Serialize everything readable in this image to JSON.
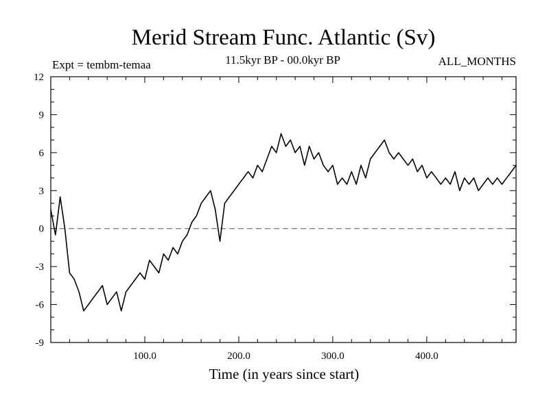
{
  "chart_data": {
    "type": "line",
    "title": "Merid Stream Func. Atlantic (Sv)",
    "subtitle_left": "Expt = tembm-temaa",
    "subtitle_center": "11.5kyr BP - 00.0kyr BP",
    "subtitle_right": "ALL_MONTHS",
    "xlabel": "Time (in years since start)",
    "ylabel": "",
    "xlim": [
      0,
      495
    ],
    "ylim": [
      -9,
      12
    ],
    "xticks": [
      100,
      200,
      300,
      400
    ],
    "xtick_labels": [
      "100.0",
      "200.0",
      "300.0",
      "400.0"
    ],
    "yticks": [
      -9,
      -6,
      -3,
      0,
      3,
      6,
      9,
      12
    ],
    "ytick_labels": [
      "-9",
      "-6",
      "-3",
      "0",
      "3",
      "6",
      "9",
      "12"
    ],
    "reference_line": {
      "y": 0,
      "style": "dashed"
    },
    "series": [
      {
        "name": "Merid Stream Func. Atlantic",
        "x_start": 0,
        "x_step": 5,
        "values": [
          1.5,
          -0.5,
          2.5,
          0.0,
          -3.5,
          -4.0,
          -5.0,
          -6.5,
          -6.0,
          -5.5,
          -5.0,
          -4.5,
          -6.0,
          -5.5,
          -5.0,
          -6.5,
          -5.0,
          -4.5,
          -4.0,
          -3.5,
          -4.0,
          -2.5,
          -3.0,
          -3.5,
          -2.0,
          -2.5,
          -1.5,
          -2.0,
          -1.0,
          -0.5,
          0.5,
          1.0,
          2.0,
          2.5,
          3.0,
          1.5,
          -1.0,
          2.0,
          2.5,
          3.0,
          3.5,
          4.0,
          4.5,
          4.0,
          5.0,
          4.5,
          5.5,
          6.5,
          6.0,
          7.5,
          6.5,
          7.0,
          6.0,
          6.5,
          5.0,
          6.5,
          5.5,
          6.0,
          5.0,
          4.5,
          5.0,
          3.5,
          4.0,
          3.5,
          4.5,
          3.5,
          5.0,
          4.0,
          5.5,
          6.0,
          6.5,
          7.0,
          6.0,
          5.5,
          6.0,
          5.5,
          5.0,
          5.5,
          4.5,
          5.0,
          4.0,
          4.5,
          4.0,
          3.5,
          4.0,
          3.5,
          4.5,
          3.0,
          4.0,
          3.5,
          4.0,
          3.0,
          3.5,
          4.0,
          3.5,
          4.0,
          3.5,
          4.0,
          4.5,
          5.0
        ]
      }
    ]
  }
}
